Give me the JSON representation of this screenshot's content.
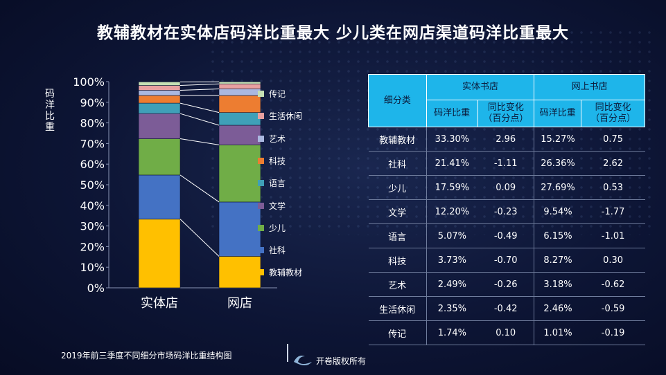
{
  "title": "教辅教材在实体店码洋比重最大  少儿类在网店渠道码洋比重最大",
  "chart_data": {
    "type": "bar",
    "stacked": true,
    "categories": [
      "实体店",
      "网店"
    ],
    "ylabel": "码洋比重",
    "ylim": [
      0,
      100
    ],
    "yticks": [
      "0%",
      "10%",
      "20%",
      "30%",
      "40%",
      "50%",
      "60%",
      "70%",
      "80%",
      "90%",
      "100%"
    ],
    "legend_position": "right",
    "series": [
      {
        "name": "教辅教材",
        "color": "#ffc000",
        "values": [
          33.3,
          15.27
        ]
      },
      {
        "name": "社科",
        "color": "#4472c4",
        "values": [
          21.41,
          26.36
        ]
      },
      {
        "name": "少儿",
        "color": "#70ad47",
        "values": [
          17.59,
          27.69
        ]
      },
      {
        "name": "文学",
        "color": "#7c5c97",
        "values": [
          12.2,
          9.54
        ]
      },
      {
        "name": "语言",
        "color": "#3fa0b8",
        "values": [
          5.07,
          6.15
        ]
      },
      {
        "name": "科技",
        "color": "#ed7d31",
        "values": [
          3.73,
          8.27
        ]
      },
      {
        "name": "艺术",
        "color": "#aab8e0",
        "values": [
          2.49,
          3.18
        ]
      },
      {
        "name": "生活休闲",
        "color": "#e8a0a0",
        "values": [
          2.35,
          2.46
        ]
      },
      {
        "name": "传记",
        "color": "#c5e0b4",
        "values": [
          1.74,
          1.01
        ]
      }
    ]
  },
  "table": {
    "corner_header": "细分类",
    "group_headers": [
      "实体书店",
      "网上书店"
    ],
    "sub_headers": [
      [
        "码洋比重"
      ],
      [
        "同比变化",
        "（百分点）"
      ],
      [
        "码洋比重"
      ],
      [
        "同比变化",
        "（百分点）"
      ]
    ],
    "rows": [
      [
        "教辅教材",
        "33.30%",
        "2.96",
        "15.27%",
        "0.75"
      ],
      [
        "社科",
        "21.41%",
        "-1.11",
        "26.36%",
        "2.62"
      ],
      [
        "少儿",
        "17.59%",
        "0.09",
        "27.69%",
        "0.53"
      ],
      [
        "文学",
        "12.20%",
        "-0.23",
        "9.54%",
        "-1.77"
      ],
      [
        "语言",
        "5.07%",
        "-0.49",
        "6.15%",
        "-1.01"
      ],
      [
        "科技",
        "3.73%",
        "-0.70",
        "8.27%",
        "0.30"
      ],
      [
        "艺术",
        "2.49%",
        "-0.26",
        "3.18%",
        "-0.62"
      ],
      [
        "生活休闲",
        "2.35%",
        "-0.42",
        "2.46%",
        "-0.59"
      ],
      [
        "传记",
        "1.74%",
        "0.10",
        "1.01%",
        "-0.19"
      ]
    ]
  },
  "footer": {
    "source": "2019年前三季度不同细分市场码洋比重结构图",
    "copyright": "开卷版权所有"
  }
}
